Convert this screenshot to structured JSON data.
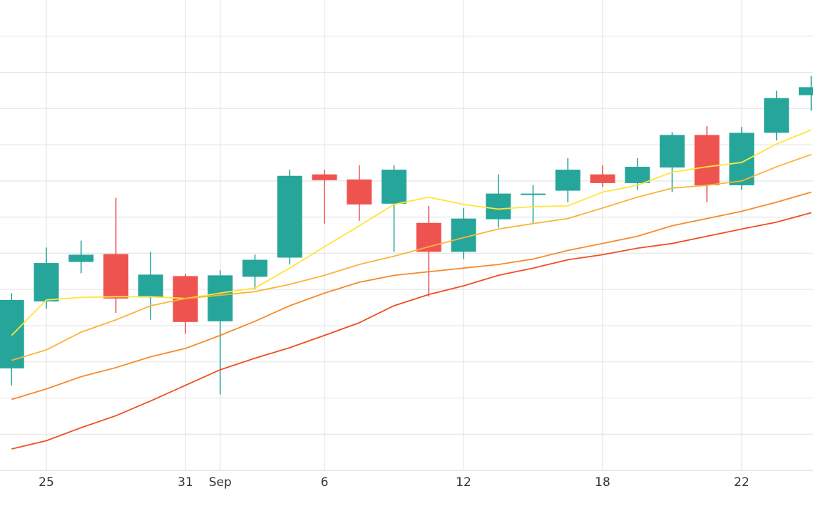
{
  "chart_data": {
    "type": "candlestick",
    "categories": [
      null,
      "25",
      null,
      null,
      null,
      "31",
      "Sep",
      null,
      null,
      "6",
      null,
      null,
      null,
      "12",
      null,
      null,
      null,
      "18",
      null,
      null,
      null,
      "22",
      null,
      null
    ],
    "open": [
      2.82,
      4.67,
      5.76,
      5.98,
      4.78,
      5.37,
      4.12,
      5.35,
      5.88,
      8.18,
      8.04,
      7.37,
      6.84,
      6.04,
      6.94,
      7.61,
      7.73,
      8.18,
      7.94,
      8.37,
      9.27,
      7.88,
      9.33,
      10.37
    ],
    "high": [
      4.9,
      6.16,
      6.35,
      7.53,
      6.04,
      5.43,
      5.53,
      5.96,
      8.31,
      8.31,
      8.43,
      8.43,
      7.31,
      7.25,
      8.18,
      7.88,
      8.63,
      8.43,
      8.63,
      9.35,
      9.51,
      9.49,
      10.49,
      10.9
    ],
    "low": [
      2.35,
      4.47,
      5.45,
      4.35,
      4.16,
      3.78,
      2.1,
      5.0,
      5.69,
      6.82,
      6.9,
      6.04,
      4.8,
      5.84,
      6.71,
      6.84,
      7.41,
      7.84,
      7.75,
      7.69,
      7.41,
      7.76,
      9.12,
      9.94
    ],
    "close": [
      4.71,
      5.73,
      5.96,
      4.75,
      5.41,
      4.1,
      5.39,
      5.82,
      8.14,
      8.02,
      7.35,
      8.31,
      6.04,
      6.96,
      7.65,
      7.65,
      8.31,
      7.94,
      8.39,
      9.27,
      7.88,
      9.33,
      10.29,
      10.59
    ],
    "up_color": "#26a69a",
    "down_color": "#ef5350",
    "lines": [
      {
        "color": "#ffe53b",
        "values": [
          3.73,
          4.71,
          4.78,
          4.8,
          4.8,
          4.75,
          4.9,
          5.04,
          5.59,
          6.18,
          6.76,
          7.35,
          7.55,
          7.35,
          7.22,
          7.29,
          7.31,
          7.69,
          7.88,
          8.24,
          8.39,
          8.51,
          9.02,
          9.41
        ]
      },
      {
        "color": "#f9b43a",
        "values": [
          3.04,
          3.33,
          3.82,
          4.16,
          4.55,
          4.75,
          4.84,
          4.94,
          5.14,
          5.39,
          5.69,
          5.92,
          6.18,
          6.43,
          6.67,
          6.82,
          6.96,
          7.25,
          7.55,
          7.8,
          7.88,
          8.0,
          8.39,
          8.73
        ]
      },
      {
        "color": "#f68a2c",
        "values": [
          1.96,
          2.25,
          2.59,
          2.84,
          3.14,
          3.37,
          3.73,
          4.12,
          4.55,
          4.9,
          5.2,
          5.39,
          5.49,
          5.59,
          5.69,
          5.84,
          6.08,
          6.27,
          6.47,
          6.76,
          6.96,
          7.16,
          7.41,
          7.69
        ]
      },
      {
        "color": "#f04e23",
        "values": [
          0.59,
          0.82,
          1.18,
          1.51,
          1.92,
          2.35,
          2.78,
          3.1,
          3.39,
          3.73,
          4.08,
          4.55,
          4.86,
          5.1,
          5.39,
          5.59,
          5.82,
          5.96,
          6.14,
          6.27,
          6.47,
          6.67,
          6.86,
          7.12
        ]
      }
    ],
    "ylim": [
      0,
      13
    ],
    "yticks": [
      0,
      1,
      2,
      3,
      4,
      5,
      6,
      7,
      8,
      9,
      10,
      11,
      12
    ],
    "ytick_labels": false,
    "grid": true
  }
}
